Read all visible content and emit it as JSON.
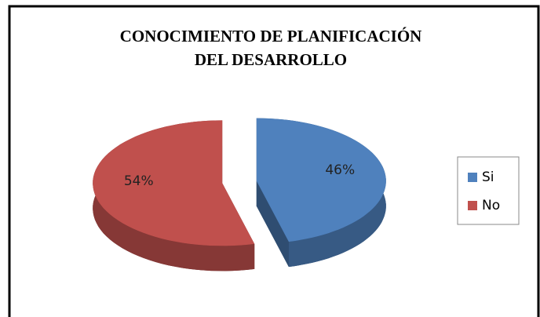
{
  "chart_data": {
    "type": "pie3d",
    "title": [
      "CONOCIMIENTO DE PLANIFICACIÓN",
      "DEL DESARROLLO"
    ],
    "categories": [
      "Si",
      "No"
    ],
    "values": [
      46,
      54
    ],
    "value_labels": [
      "46%",
      "54%"
    ],
    "colors": [
      "#4f81bd",
      "#c0504d"
    ],
    "legend": "right"
  }
}
